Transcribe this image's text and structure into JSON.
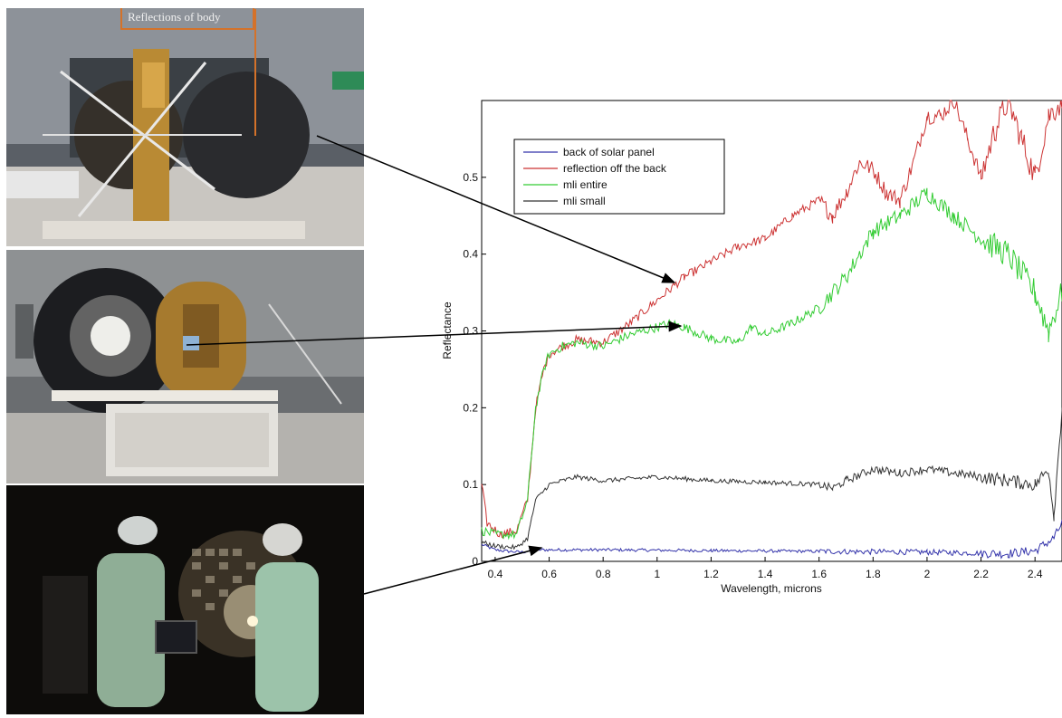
{
  "callout": {
    "label": "Reflections of body"
  },
  "photos": [
    {
      "name": "spacecraft-body-photo"
    },
    {
      "name": "solar-panel-back-photo"
    },
    {
      "name": "technicians-measuring-photo"
    }
  ],
  "colors": {
    "back_of_solar_panel": "#3333aa",
    "reflection_off_the_back": "#cc3333",
    "mli_entire": "#33cc33",
    "mli_small": "#333333",
    "callout": "#d4722a"
  },
  "chart_data": {
    "type": "line",
    "title": "",
    "xlabel": "Wavelength, microns",
    "ylabel": "Reflectance",
    "xlim": [
      0.35,
      2.5
    ],
    "ylim": [
      0,
      0.6
    ],
    "xticks": [
      "0.4",
      "0.6",
      "0.8",
      "1",
      "1.2",
      "1.4",
      "1.6",
      "1.8",
      "2",
      "2.2",
      "2.4"
    ],
    "yticks": [
      "0",
      "0.1",
      "0.2",
      "0.3",
      "0.4",
      "0.5"
    ],
    "legend_position": "top-left",
    "grid": false,
    "series": [
      {
        "name": "back of solar panel",
        "color": "#3333aa",
        "noise": 0.002,
        "points": [
          [
            0.35,
            0.022
          ],
          [
            0.4,
            0.015
          ],
          [
            0.45,
            0.013
          ],
          [
            0.5,
            0.012
          ],
          [
            0.55,
            0.015
          ],
          [
            0.8,
            0.015
          ],
          [
            1.2,
            0.014
          ],
          [
            1.6,
            0.013
          ],
          [
            2.0,
            0.012
          ],
          [
            2.3,
            0.01
          ],
          [
            2.4,
            0.014
          ],
          [
            2.47,
            0.03
          ],
          [
            2.5,
            0.05
          ]
        ]
      },
      {
        "name": "reflection off the back",
        "color": "#cc3333",
        "noise": 0.006,
        "points": [
          [
            0.35,
            0.1
          ],
          [
            0.37,
            0.05
          ],
          [
            0.42,
            0.035
          ],
          [
            0.48,
            0.04
          ],
          [
            0.52,
            0.08
          ],
          [
            0.55,
            0.2
          ],
          [
            0.58,
            0.25
          ],
          [
            0.6,
            0.27
          ],
          [
            0.65,
            0.28
          ],
          [
            0.7,
            0.288
          ],
          [
            0.8,
            0.285
          ],
          [
            0.9,
            0.31
          ],
          [
            1.0,
            0.34
          ],
          [
            1.1,
            0.37
          ],
          [
            1.2,
            0.39
          ],
          [
            1.3,
            0.41
          ],
          [
            1.4,
            0.42
          ],
          [
            1.5,
            0.45
          ],
          [
            1.6,
            0.47
          ],
          [
            1.65,
            0.45
          ],
          [
            1.7,
            0.48
          ],
          [
            1.75,
            0.52
          ],
          [
            1.8,
            0.51
          ],
          [
            1.85,
            0.48
          ],
          [
            1.9,
            0.47
          ],
          [
            1.95,
            0.52
          ],
          [
            2.0,
            0.58
          ],
          [
            2.05,
            0.58
          ],
          [
            2.1,
            0.6
          ],
          [
            2.15,
            0.55
          ],
          [
            2.2,
            0.5
          ],
          [
            2.25,
            0.56
          ],
          [
            2.3,
            0.6
          ],
          [
            2.35,
            0.55
          ],
          [
            2.4,
            0.5
          ],
          [
            2.45,
            0.58
          ],
          [
            2.5,
            0.6
          ]
        ]
      },
      {
        "name": "mli entire",
        "color": "#33cc33",
        "noise": 0.006,
        "points": [
          [
            0.35,
            0.04
          ],
          [
            0.4,
            0.035
          ],
          [
            0.48,
            0.035
          ],
          [
            0.52,
            0.08
          ],
          [
            0.55,
            0.2
          ],
          [
            0.58,
            0.25
          ],
          [
            0.6,
            0.27
          ],
          [
            0.65,
            0.28
          ],
          [
            0.7,
            0.285
          ],
          [
            0.8,
            0.28
          ],
          [
            0.9,
            0.295
          ],
          [
            1.0,
            0.305
          ],
          [
            1.05,
            0.31
          ],
          [
            1.1,
            0.305
          ],
          [
            1.2,
            0.29
          ],
          [
            1.3,
            0.285
          ],
          [
            1.35,
            0.305
          ],
          [
            1.4,
            0.295
          ],
          [
            1.5,
            0.31
          ],
          [
            1.6,
            0.33
          ],
          [
            1.7,
            0.37
          ],
          [
            1.8,
            0.43
          ],
          [
            1.9,
            0.45
          ],
          [
            2.0,
            0.48
          ],
          [
            2.1,
            0.45
          ],
          [
            2.2,
            0.42
          ],
          [
            2.3,
            0.4
          ],
          [
            2.4,
            0.35
          ],
          [
            2.45,
            0.3
          ],
          [
            2.5,
            0.35
          ]
        ]
      },
      {
        "name": "mli small",
        "color": "#333333",
        "noise": 0.003,
        "points": [
          [
            0.35,
            0.025
          ],
          [
            0.4,
            0.02
          ],
          [
            0.48,
            0.018
          ],
          [
            0.52,
            0.03
          ],
          [
            0.55,
            0.08
          ],
          [
            0.6,
            0.1
          ],
          [
            0.7,
            0.11
          ],
          [
            0.8,
            0.105
          ],
          [
            1.0,
            0.11
          ],
          [
            1.2,
            0.105
          ],
          [
            1.4,
            0.103
          ],
          [
            1.6,
            0.1
          ],
          [
            1.65,
            0.095
          ],
          [
            1.7,
            0.105
          ],
          [
            1.8,
            0.12
          ],
          [
            1.9,
            0.115
          ],
          [
            2.0,
            0.12
          ],
          [
            2.1,
            0.115
          ],
          [
            2.2,
            0.11
          ],
          [
            2.3,
            0.105
          ],
          [
            2.4,
            0.1
          ],
          [
            2.45,
            0.12
          ],
          [
            2.47,
            0.06
          ],
          [
            2.5,
            0.2
          ]
        ]
      }
    ]
  }
}
